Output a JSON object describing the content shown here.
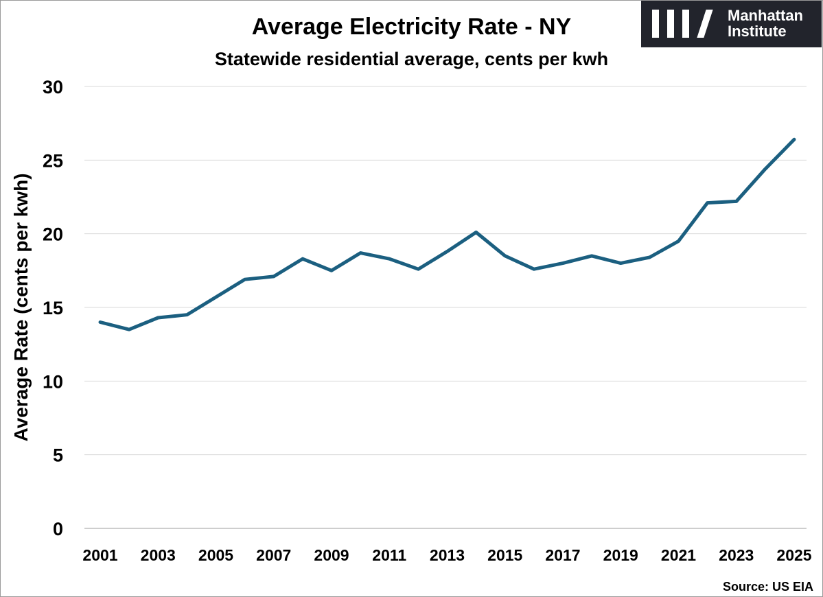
{
  "chart_data": {
    "type": "line",
    "title": "Average Electricity Rate - NY",
    "subtitle": "Statewide residential average, cents per kwh",
    "ylabel": "Average Rate (cents per kwh)",
    "xlabel": "",
    "ylim": [
      0,
      30
    ],
    "yticks": [
      0,
      5,
      10,
      15,
      20,
      25,
      30
    ],
    "xtick_labels": [
      "2001",
      "2003",
      "2005",
      "2007",
      "2009",
      "2011",
      "2013",
      "2015",
      "2017",
      "2019",
      "2021",
      "2023",
      "2025"
    ],
    "grid": "horizontal",
    "series": [
      {
        "x": [
          2001,
          2002,
          2003,
          2004,
          2005,
          2006,
          2007,
          2008,
          2009,
          2010,
          2011,
          2012,
          2013,
          2014,
          2015,
          2016,
          2017,
          2018,
          2019,
          2020,
          2021,
          2022,
          2023,
          2024,
          2025
        ],
        "values": [
          14.0,
          13.5,
          14.3,
          14.5,
          15.7,
          16.9,
          17.1,
          18.3,
          17.5,
          18.7,
          18.3,
          17.6,
          18.8,
          20.1,
          18.5,
          17.6,
          18.0,
          18.5,
          18.0,
          18.4,
          19.5,
          22.1,
          22.2,
          24.4,
          26.4
        ]
      }
    ],
    "line_color": "#1b5f80",
    "source": "Source: US EIA"
  },
  "logo": {
    "line1": "Manhattan",
    "line2": "Institute"
  }
}
